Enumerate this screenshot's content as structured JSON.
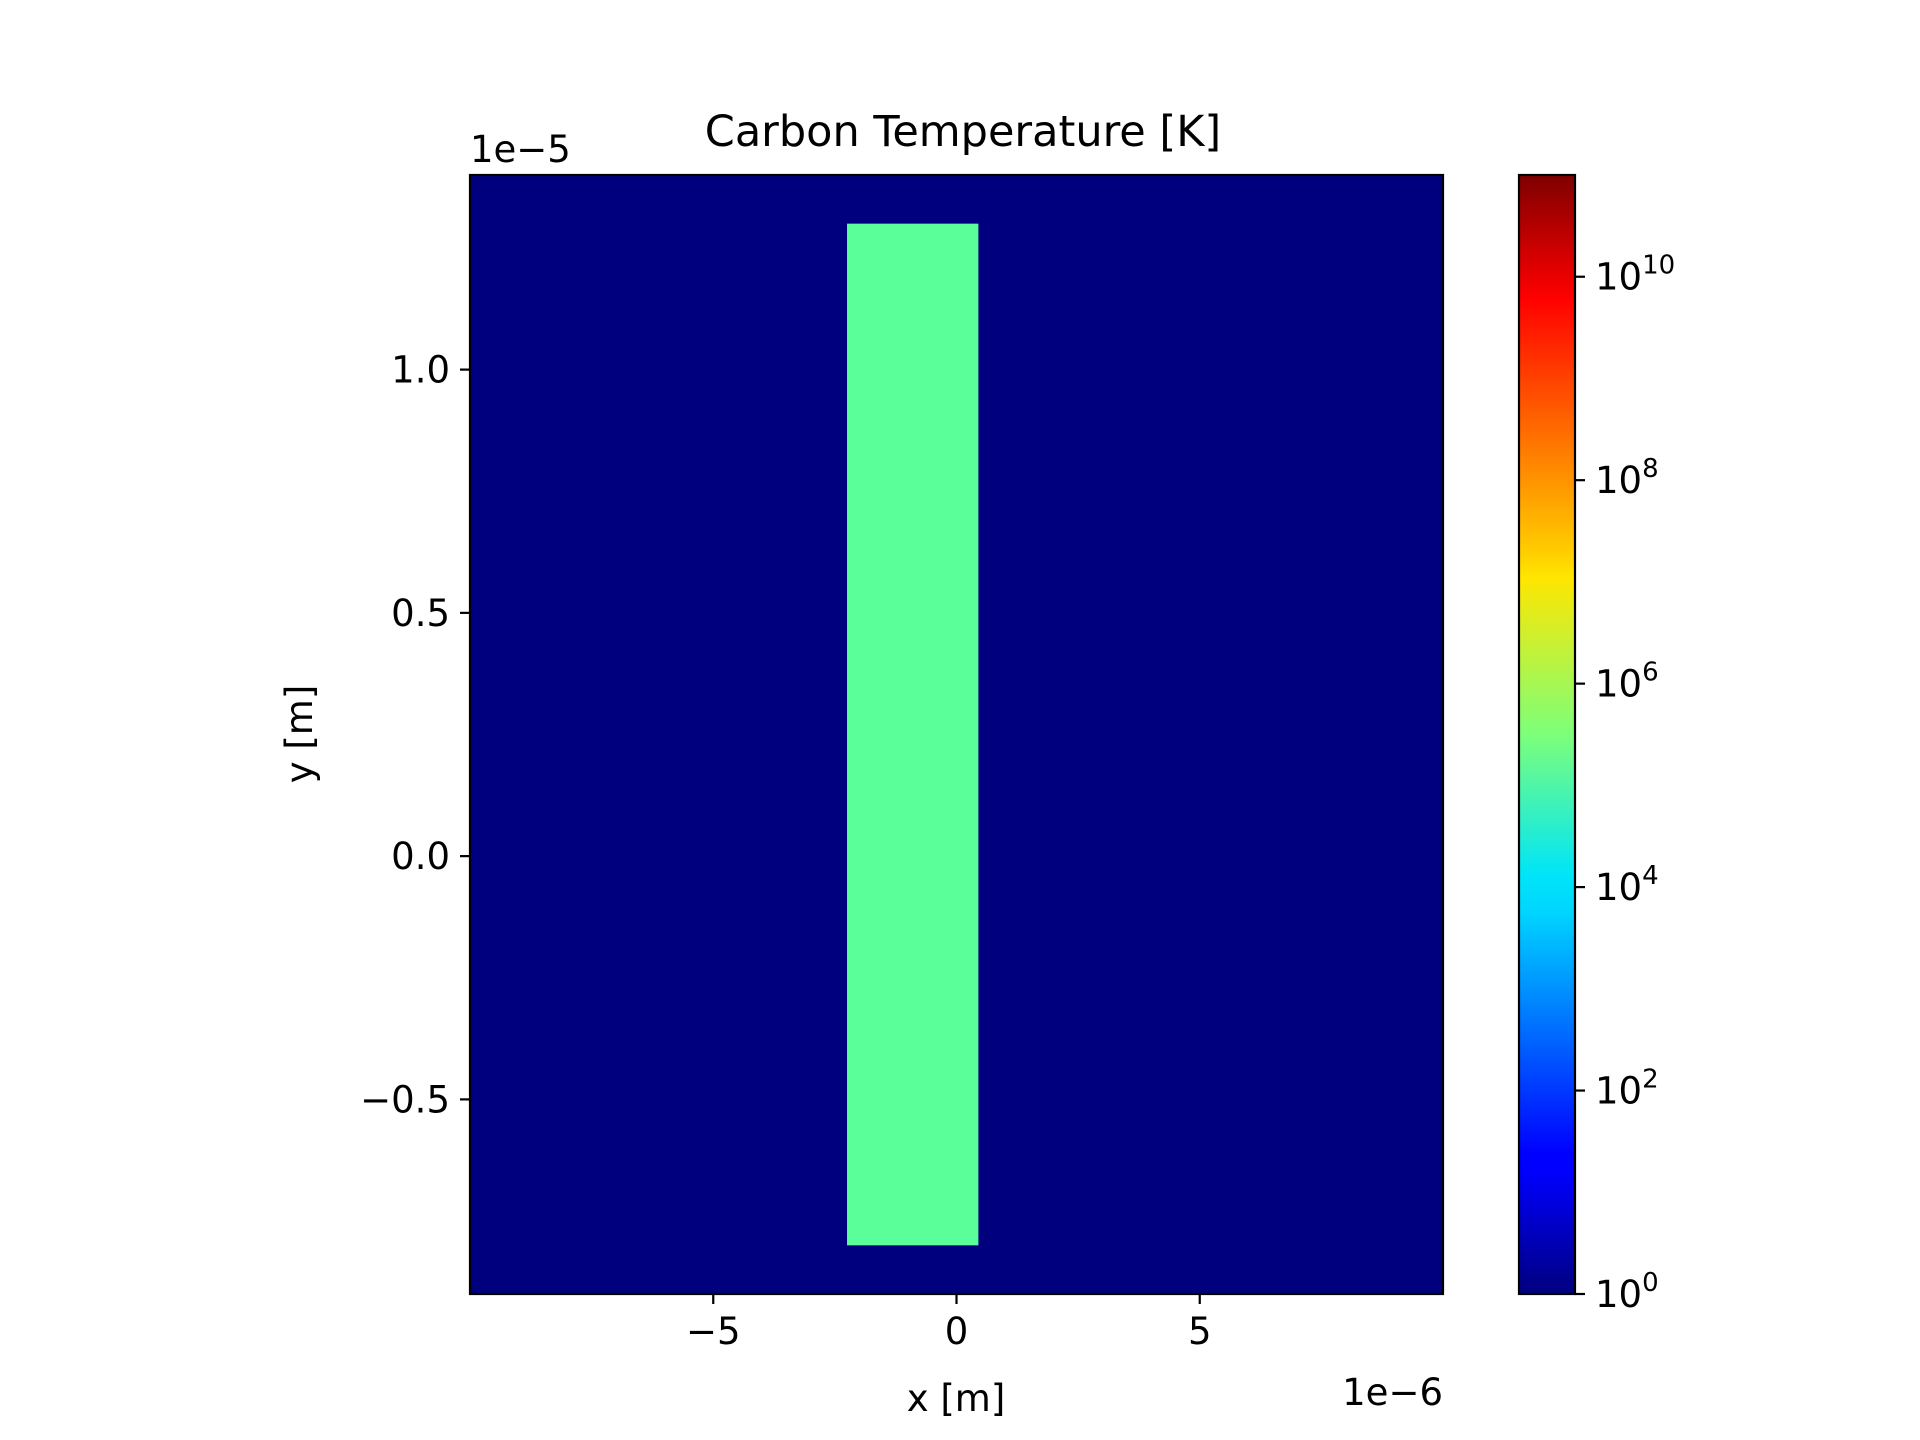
{
  "chart_data": {
    "type": "heatmap",
    "title": "Carbon Temperature [K]",
    "xlabel": "x [m]",
    "ylabel": "y [m]",
    "x_offset_text": "1e−6",
    "y_offset_text": "1e−5",
    "xlim": [
      -1e-05,
      1e-05
    ],
    "ylim": [
      -9e-06,
      1.4e-05
    ],
    "x_ticks": [
      {
        "value": -5e-06,
        "label": "−5"
      },
      {
        "value": 0,
        "label": "0"
      },
      {
        "value": 5e-06,
        "label": "5"
      }
    ],
    "y_ticks": [
      {
        "value": 1e-05,
        "label": "1.0"
      },
      {
        "value": 5e-06,
        "label": "0.5"
      },
      {
        "value": 0,
        "label": "0.0"
      },
      {
        "value": -5e-06,
        "label": "−0.5"
      }
    ],
    "background": {
      "value": 1,
      "color": "#00007f"
    },
    "regions": [
      {
        "name": "carbon",
        "x_range": [
          -2.25e-06,
          4.5e-07
        ],
        "y_range": [
          -8e-06,
          1.3e-05
        ],
        "value": 50000,
        "color": "#5aff9a"
      }
    ],
    "colorbar": {
      "colormap": "jet",
      "scale": "log",
      "range": [
        1,
        100000000000.0
      ],
      "ticks": [
        {
          "exp": 0,
          "base": "10",
          "sup": "0"
        },
        {
          "exp": 2,
          "base": "10",
          "sup": "2"
        },
        {
          "exp": 4,
          "base": "10",
          "sup": "4"
        },
        {
          "exp": 6,
          "base": "10",
          "sup": "6"
        },
        {
          "exp": 8,
          "base": "10",
          "sup": "8"
        },
        {
          "exp": 10,
          "base": "10",
          "sup": "10"
        }
      ]
    },
    "grid": false
  }
}
